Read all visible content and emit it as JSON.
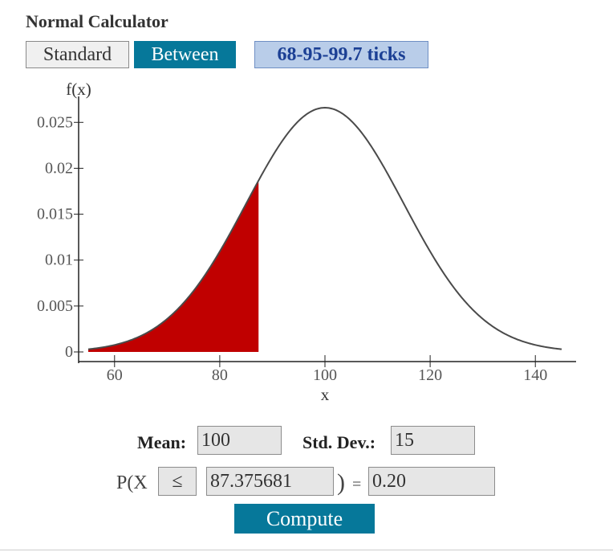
{
  "title": "Normal Calculator",
  "mode_buttons": {
    "standard": "Standard",
    "between": "Between",
    "ticks": "68-95-99.7 ticks"
  },
  "chart_data": {
    "type": "area",
    "curve": "normal density",
    "mean": 100,
    "sd": 15,
    "shaded_from": 55,
    "shaded_to": 87.375681,
    "shade_color": "#c00000",
    "xlabel": "x",
    "ylabel": "f(x)",
    "xlim": [
      55,
      145
    ],
    "ylim": [
      0,
      0.0266
    ],
    "x_ticks": [
      "60",
      "80",
      "100",
      "120",
      "140"
    ],
    "y_ticks": [
      "0",
      "0.005",
      "0.01",
      "0.015",
      "0.02",
      "0.025"
    ],
    "x_tick_values": [
      60,
      80,
      100,
      120,
      140
    ],
    "y_tick_values": [
      0,
      0.005,
      0.01,
      0.015,
      0.02,
      0.025
    ]
  },
  "form": {
    "mean_label": "Mean:",
    "mean_value": "100",
    "sd_label": "Std. Dev.:",
    "sd_value": "15",
    "p_label": "P(X",
    "operator": "≤",
    "x_value": "87.375681",
    "close_paren": ")",
    "equals": "=",
    "prob_value": "0.20",
    "compute_label": "Compute"
  }
}
